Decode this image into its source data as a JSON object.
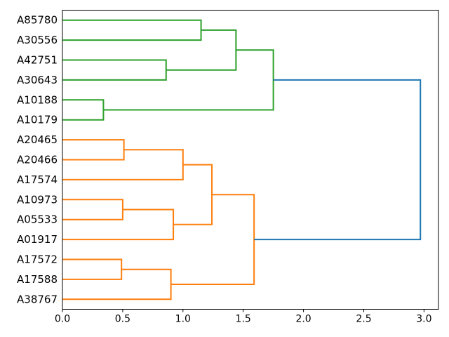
{
  "figure": {
    "background": "#ffffff",
    "frame_color": "#000000"
  },
  "chart_data": {
    "type": "dendrogram",
    "orientation": "right",
    "title": "",
    "xlabel": "",
    "ylabel": "",
    "grid": false,
    "legend": false,
    "xlim": [
      0,
      3.12
    ],
    "x_ticks": [
      "0.0",
      "0.5",
      "1.0",
      "1.5",
      "2.0",
      "2.5",
      "3.0"
    ],
    "x_tick_values": [
      0,
      0.5,
      1.0,
      1.5,
      2.0,
      2.5,
      3.0
    ],
    "leaves": [
      "A85780",
      "A30556",
      "A42751",
      "A30643",
      "A10188",
      "A10179",
      "A20465",
      "A20466",
      "A17574",
      "A10973",
      "A05533",
      "A01917",
      "A17572",
      "A17588",
      "A38767"
    ],
    "colors": {
      "green": "#2ca02c",
      "orange": "#ff7f0e",
      "blue": "#1f77b4"
    },
    "merges": [
      {
        "id": "G1",
        "a": "A85780",
        "b": "A30556",
        "distance": 1.15,
        "color": "green"
      },
      {
        "id": "G2",
        "a": "A42751",
        "b": "A30643",
        "distance": 0.86,
        "color": "green"
      },
      {
        "id": "G3",
        "a": "G1",
        "b": "G2",
        "distance": 1.44,
        "color": "green"
      },
      {
        "id": "G4",
        "a": "A10188",
        "b": "A10179",
        "distance": 0.34,
        "color": "green"
      },
      {
        "id": "G5",
        "a": "G3",
        "b": "G4",
        "distance": 1.75,
        "color": "green"
      },
      {
        "id": "O1",
        "a": "A20465",
        "b": "A20466",
        "distance": 0.51,
        "color": "orange"
      },
      {
        "id": "O2",
        "a": "O1",
        "b": "A17574",
        "distance": 1.0,
        "color": "orange"
      },
      {
        "id": "O3",
        "a": "A10973",
        "b": "A05533",
        "distance": 0.5,
        "color": "orange"
      },
      {
        "id": "O4",
        "a": "O3",
        "b": "A01917",
        "distance": 0.92,
        "color": "orange"
      },
      {
        "id": "O5",
        "a": "O2",
        "b": "O4",
        "distance": 1.24,
        "color": "orange"
      },
      {
        "id": "O6",
        "a": "A17572",
        "b": "A17588",
        "distance": 0.49,
        "color": "orange"
      },
      {
        "id": "O7",
        "a": "O6",
        "b": "A38767",
        "distance": 0.9,
        "color": "orange"
      },
      {
        "id": "O8",
        "a": "O5",
        "b": "O7",
        "distance": 1.59,
        "color": "orange"
      },
      {
        "id": "ROOT",
        "a": "G5",
        "b": "O8",
        "distance": 2.97,
        "color": "blue"
      }
    ]
  }
}
